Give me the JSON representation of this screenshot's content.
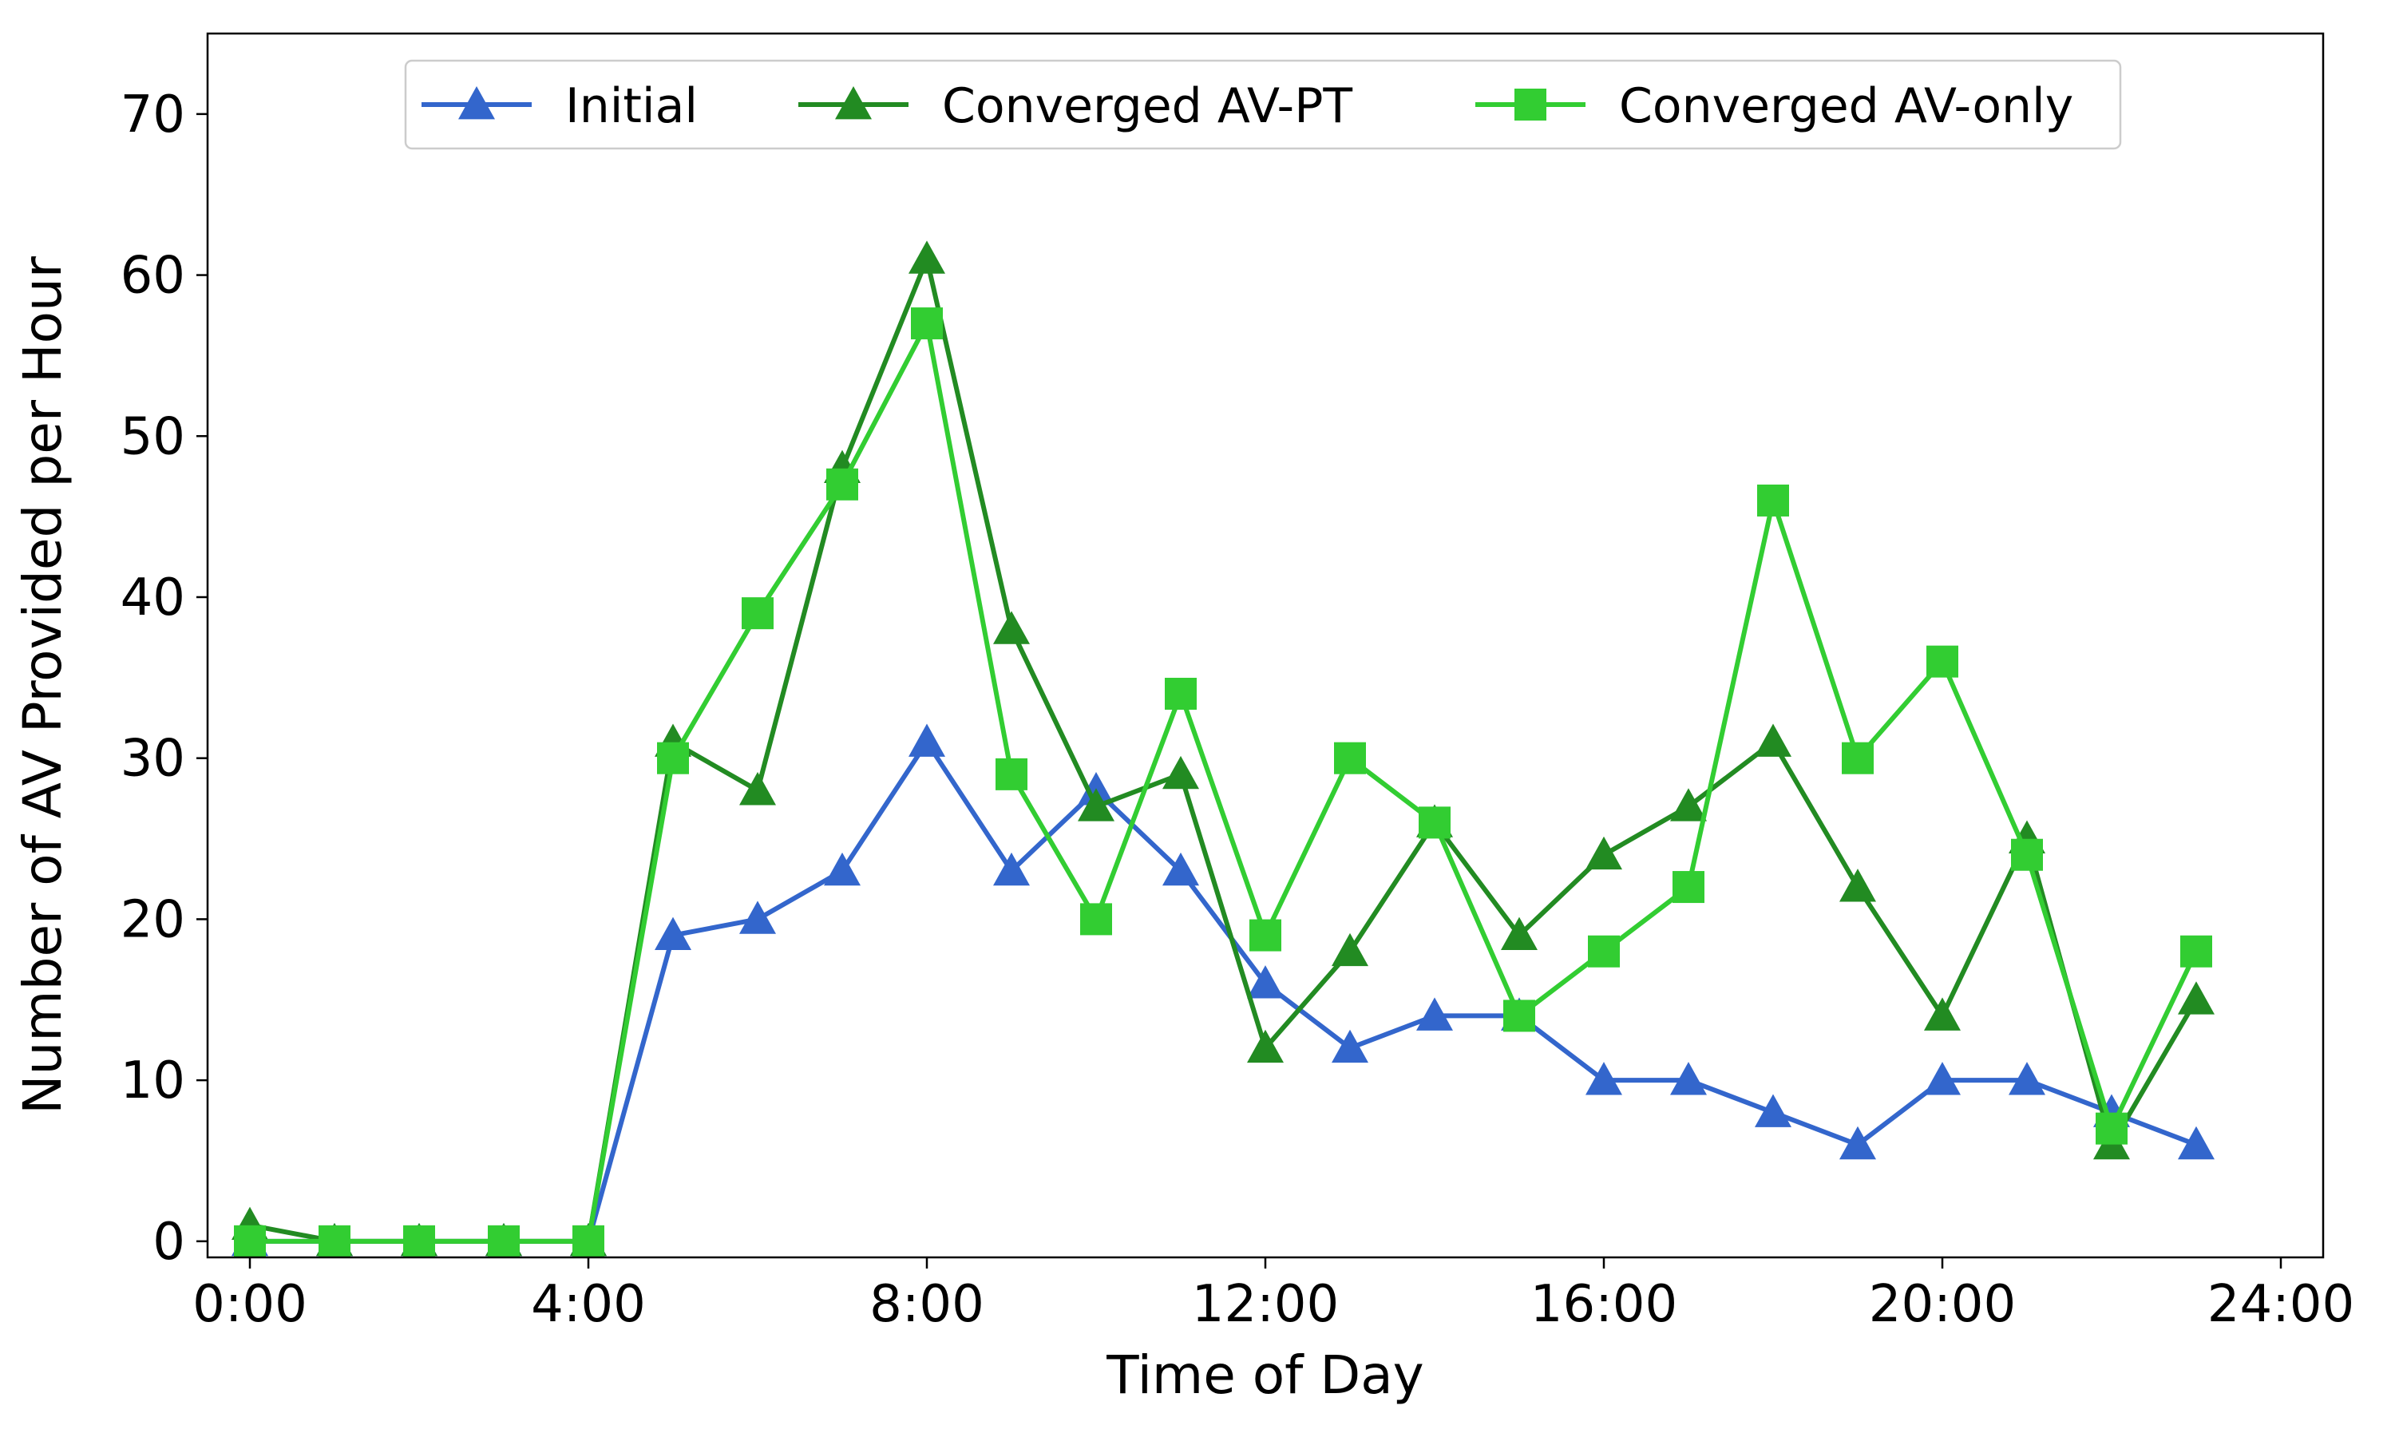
{
  "chart_data": {
    "type": "line",
    "xlabel": "Time of Day",
    "ylabel": "Number of AV Provided per Hour",
    "xlim": [
      -0.5,
      24.5
    ],
    "ylim": [
      -1,
      75
    ],
    "x_ticks": [
      0,
      4,
      8,
      12,
      16,
      20,
      24
    ],
    "x_tick_labels": [
      "0:00",
      "4:00",
      "8:00",
      "12:00",
      "16:00",
      "20:00",
      "24:00"
    ],
    "y_ticks": [
      0,
      10,
      20,
      30,
      40,
      50,
      60,
      70
    ],
    "y_tick_labels": [
      "0",
      "10",
      "20",
      "30",
      "40",
      "50",
      "60",
      "70"
    ],
    "grid": false,
    "legend_position": "top-center",
    "x": [
      0,
      1,
      2,
      3,
      4,
      5,
      6,
      7,
      8,
      9,
      10,
      11,
      12,
      13,
      14,
      15,
      16,
      17,
      18,
      19,
      20,
      21,
      22,
      23
    ],
    "series": [
      {
        "name": "Initial",
        "color": "#3366cc",
        "marker": "triangle",
        "values": [
          0,
          0,
          0,
          0,
          0,
          19,
          20,
          23,
          31,
          23,
          28,
          23,
          16,
          12,
          14,
          14,
          10,
          10,
          8,
          6,
          10,
          10,
          8,
          6
        ]
      },
      {
        "name": "Converged AV-PT",
        "color": "#228b22",
        "marker": "triangle",
        "values": [
          1,
          0,
          0,
          0,
          0,
          31,
          28,
          48,
          61,
          38,
          27,
          29,
          12,
          18,
          26,
          19,
          24,
          27,
          31,
          22,
          14,
          25,
          6,
          15
        ]
      },
      {
        "name": "Converged AV-only",
        "color": "#32cd32",
        "marker": "square",
        "values": [
          0,
          0,
          0,
          0,
          0,
          30,
          39,
          47,
          57,
          29,
          20,
          34,
          19,
          30,
          26,
          14,
          18,
          22,
          46,
          30,
          36,
          24,
          7,
          18
        ]
      }
    ]
  }
}
